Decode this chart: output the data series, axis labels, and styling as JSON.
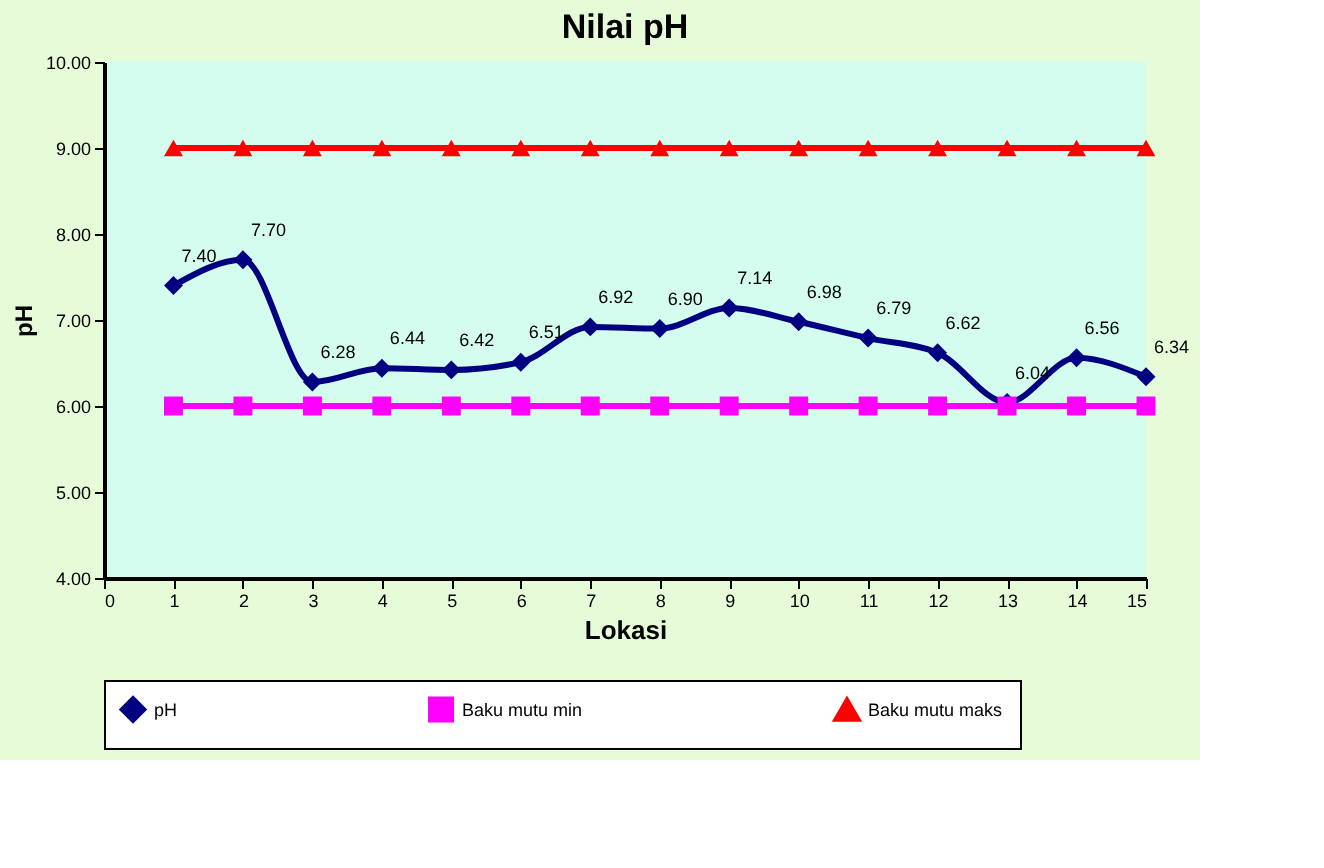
{
  "chart_data": {
    "type": "line",
    "title": "Nilai pH",
    "xlabel": "Lokasi",
    "ylabel": "pH",
    "x": [
      1,
      2,
      3,
      4,
      5,
      6,
      7,
      8,
      9,
      10,
      11,
      12,
      13,
      14,
      15
    ],
    "xlim": [
      0,
      15
    ],
    "xticks": [
      0,
      1,
      2,
      3,
      4,
      5,
      6,
      7,
      8,
      9,
      10,
      11,
      12,
      13,
      14,
      15
    ],
    "ylim": [
      4,
      10
    ],
    "yticks": [
      {
        "value": 4,
        "label": "4.00"
      },
      {
        "value": 5,
        "label": "5.00"
      },
      {
        "value": 6,
        "label": "6.00"
      },
      {
        "value": 7,
        "label": "7.00"
      },
      {
        "value": 8,
        "label": "8.00"
      },
      {
        "value": 9,
        "label": "9.00"
      },
      {
        "value": 10,
        "label": "10.00"
      }
    ],
    "grid": false,
    "legend": "bottom",
    "series": [
      {
        "name": "pH",
        "color": "#000080",
        "marker": "diamond",
        "values": [
          7.4,
          7.7,
          6.28,
          6.44,
          6.42,
          6.51,
          6.92,
          6.9,
          7.14,
          6.98,
          6.79,
          6.62,
          6.04,
          6.56,
          6.34
        ],
        "value_labels": [
          "7.40",
          "7.70",
          "6.28",
          "6.44",
          "6.42",
          "6.51",
          "6.92",
          "6.90",
          "7.14",
          "6.98",
          "6.79",
          "6.62",
          "6.04",
          "6.56",
          "6.34"
        ]
      },
      {
        "name": "Baku mutu min",
        "color": "#ff00ff",
        "marker": "square",
        "values": [
          6,
          6,
          6,
          6,
          6,
          6,
          6,
          6,
          6,
          6,
          6,
          6,
          6,
          6,
          6
        ]
      },
      {
        "name": "Baku mutu maks",
        "color": "#ff0000",
        "marker": "triangle",
        "values": [
          9,
          9,
          9,
          9,
          9,
          9,
          9,
          9,
          9,
          9,
          9,
          9,
          9,
          9,
          9
        ]
      }
    ]
  }
}
